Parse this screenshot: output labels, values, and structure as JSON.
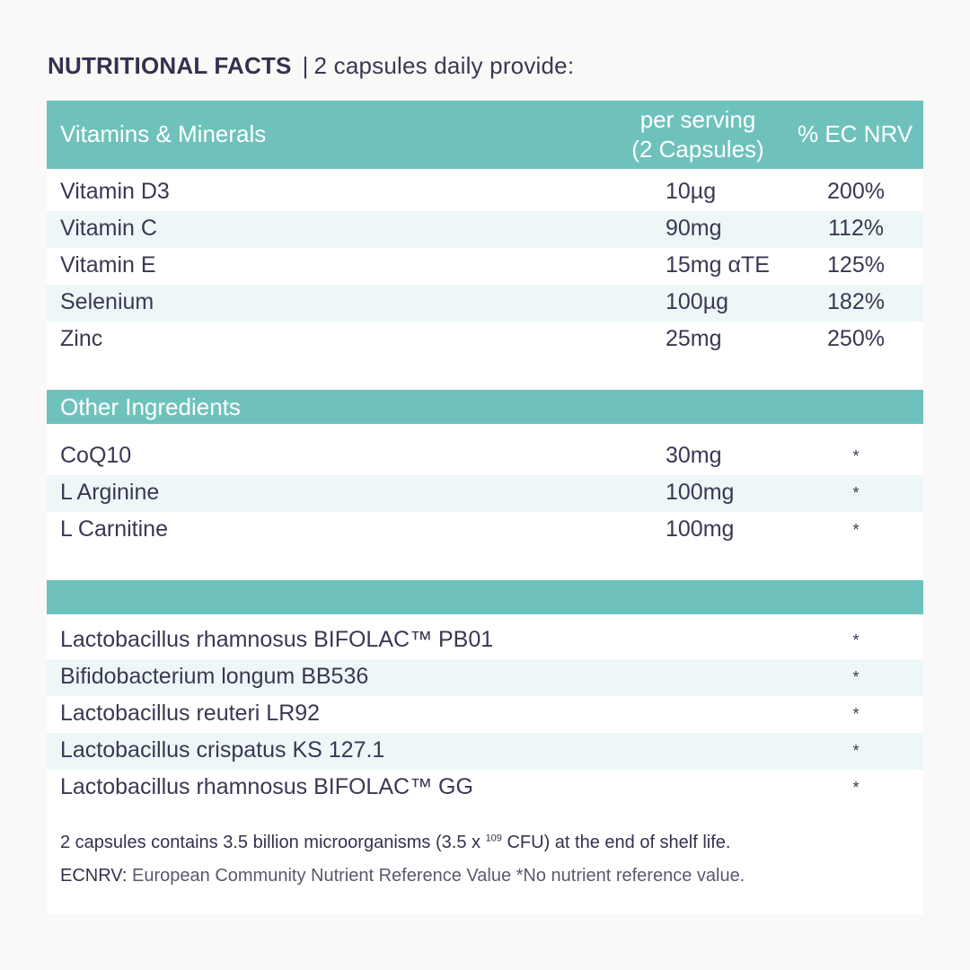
{
  "title": {
    "bold": "NUTRITIONAL FACTS",
    "separator": "|",
    "rest": "2 capsules daily provide:"
  },
  "vitamins": {
    "header": {
      "name": "Vitamins & Minerals",
      "serving_line1": "per serving",
      "serving_line2": "(2 Capsules)",
      "nrv": "% EC NRV"
    },
    "rows": [
      {
        "name": "Vitamin D3",
        "amount": "10µg",
        "nrv": "200%"
      },
      {
        "name": "Vitamin C",
        "amount": "90mg",
        "nrv": "112%"
      },
      {
        "name": "Vitamin E",
        "amount": "15mg αTE",
        "nrv": "125%"
      },
      {
        "name": "Selenium",
        "amount": "100µg",
        "nrv": "182%"
      },
      {
        "name": "Zinc",
        "amount": "25mg",
        "nrv": "250%"
      }
    ]
  },
  "other": {
    "header": "Other Ingredients",
    "rows": [
      {
        "name": "CoQ10",
        "amount": "30mg",
        "nrv": "*"
      },
      {
        "name": "L Arginine",
        "amount": "100mg",
        "nrv": "*"
      },
      {
        "name": "L Carnitine",
        "amount": "100mg",
        "nrv": "*"
      }
    ]
  },
  "probiotics": {
    "rows": [
      {
        "name": "Lactobacillus rhamnosus BIFOLAC™ PB01",
        "nrv": "*"
      },
      {
        "name": "Bifidobacterium longum BB536",
        "nrv": "*"
      },
      {
        "name": "Lactobacillus reuteri LR92",
        "nrv": "*"
      },
      {
        "name": "Lactobacillus crispatus KS 127.1",
        "nrv": "*"
      },
      {
        "name": "Lactobacillus rhamnosus BIFOLAC™ GG",
        "nrv": "*"
      }
    ]
  },
  "footnotes": {
    "line1_a": "2 capsules contains 3.5 billion microorganisms (3.5 x ",
    "line1_sup": "109",
    "line1_b": " CFU) at the end of shelf life.",
    "line2_label": "ECNRV:",
    "line2_text": " European Community Nutrient Reference Value *No nutrient reference value."
  },
  "colors": {
    "teal": "#6fc2bc",
    "stripe": "#edf7f7",
    "text": "#3b3752"
  }
}
